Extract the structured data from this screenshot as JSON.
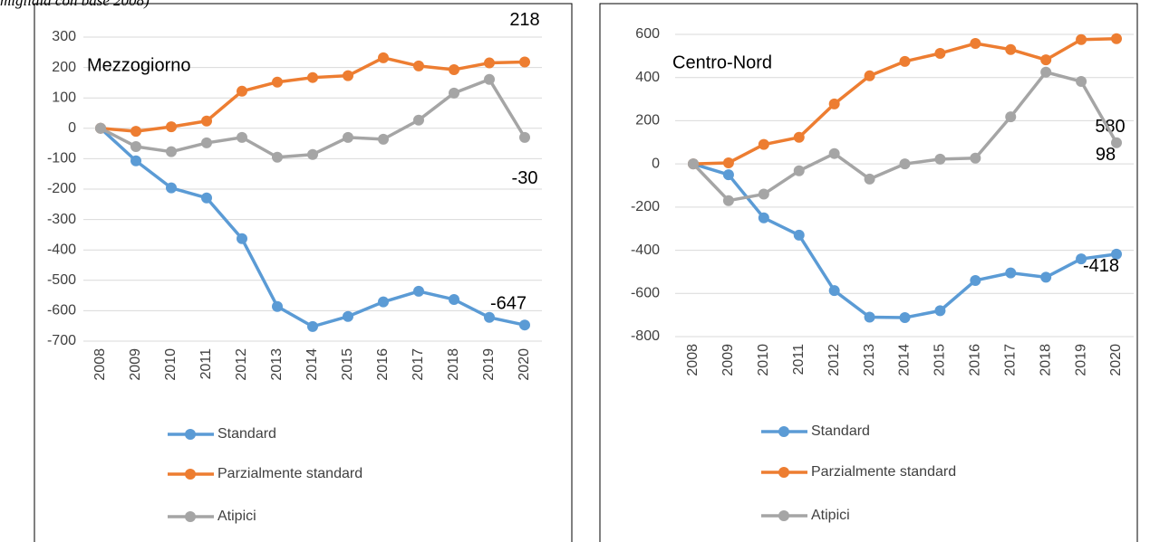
{
  "caption": "migliaia con base 2008)",
  "chart_data": [
    {
      "type": "line",
      "title": "Mezzogiorno",
      "categories": [
        "2008",
        "2009",
        "2010",
        "2011",
        "2012",
        "2013",
        "2014",
        "2015",
        "2016",
        "2017",
        "2018",
        "2019",
        "2020"
      ],
      "ylim": [
        -700,
        300
      ],
      "yticks": [
        -700,
        -600,
        -500,
        -400,
        -300,
        -200,
        -100,
        0,
        100,
        200,
        300
      ],
      "grid": true,
      "series": [
        {
          "name": "Standard",
          "color": "#5b9bd5",
          "values": [
            0,
            -107,
            -196,
            -229,
            -363,
            -586,
            -652,
            -619,
            -571,
            -536,
            -563,
            -622,
            -647
          ]
        },
        {
          "name": "Parzialmente standard",
          "color": "#ed7d31",
          "values": [
            0,
            -10,
            5,
            24,
            122,
            152,
            167,
            173,
            232,
            205,
            193,
            215,
            218
          ]
        },
        {
          "name": "Atipici",
          "color": "#a5a5a5",
          "values": [
            0,
            -60,
            -77,
            -48,
            -30,
            -95,
            -86,
            -30,
            -36,
            27,
            116,
            161,
            -30
          ]
        }
      ]
    },
    {
      "type": "line",
      "title": "Centro-Nord",
      "categories": [
        "2008",
        "2009",
        "2010",
        "2011",
        "2012",
        "2013",
        "2014",
        "2015",
        "2016",
        "2017",
        "2018",
        "2019",
        "2020"
      ],
      "ylim": [
        -800,
        600
      ],
      "yticks": [
        -800,
        -600,
        -400,
        -200,
        0,
        200,
        400,
        600
      ],
      "grid": true,
      "series": [
        {
          "name": "Standard",
          "color": "#5b9bd5",
          "values": [
            0,
            -50,
            -250,
            -330,
            -587,
            -710,
            -712,
            -680,
            -540,
            -505,
            -525,
            -440,
            -418
          ]
        },
        {
          "name": "Parzialmente standard",
          "color": "#ed7d31",
          "values": [
            0,
            5,
            90,
            123,
            278,
            408,
            475,
            512,
            558,
            530,
            482,
            576,
            580
          ]
        },
        {
          "name": "Atipici",
          "color": "#a5a5a5",
          "values": [
            0,
            -170,
            -140,
            -32,
            48,
            -70,
            0,
            22,
            27,
            218,
            425,
            382,
            98
          ]
        }
      ]
    }
  ]
}
